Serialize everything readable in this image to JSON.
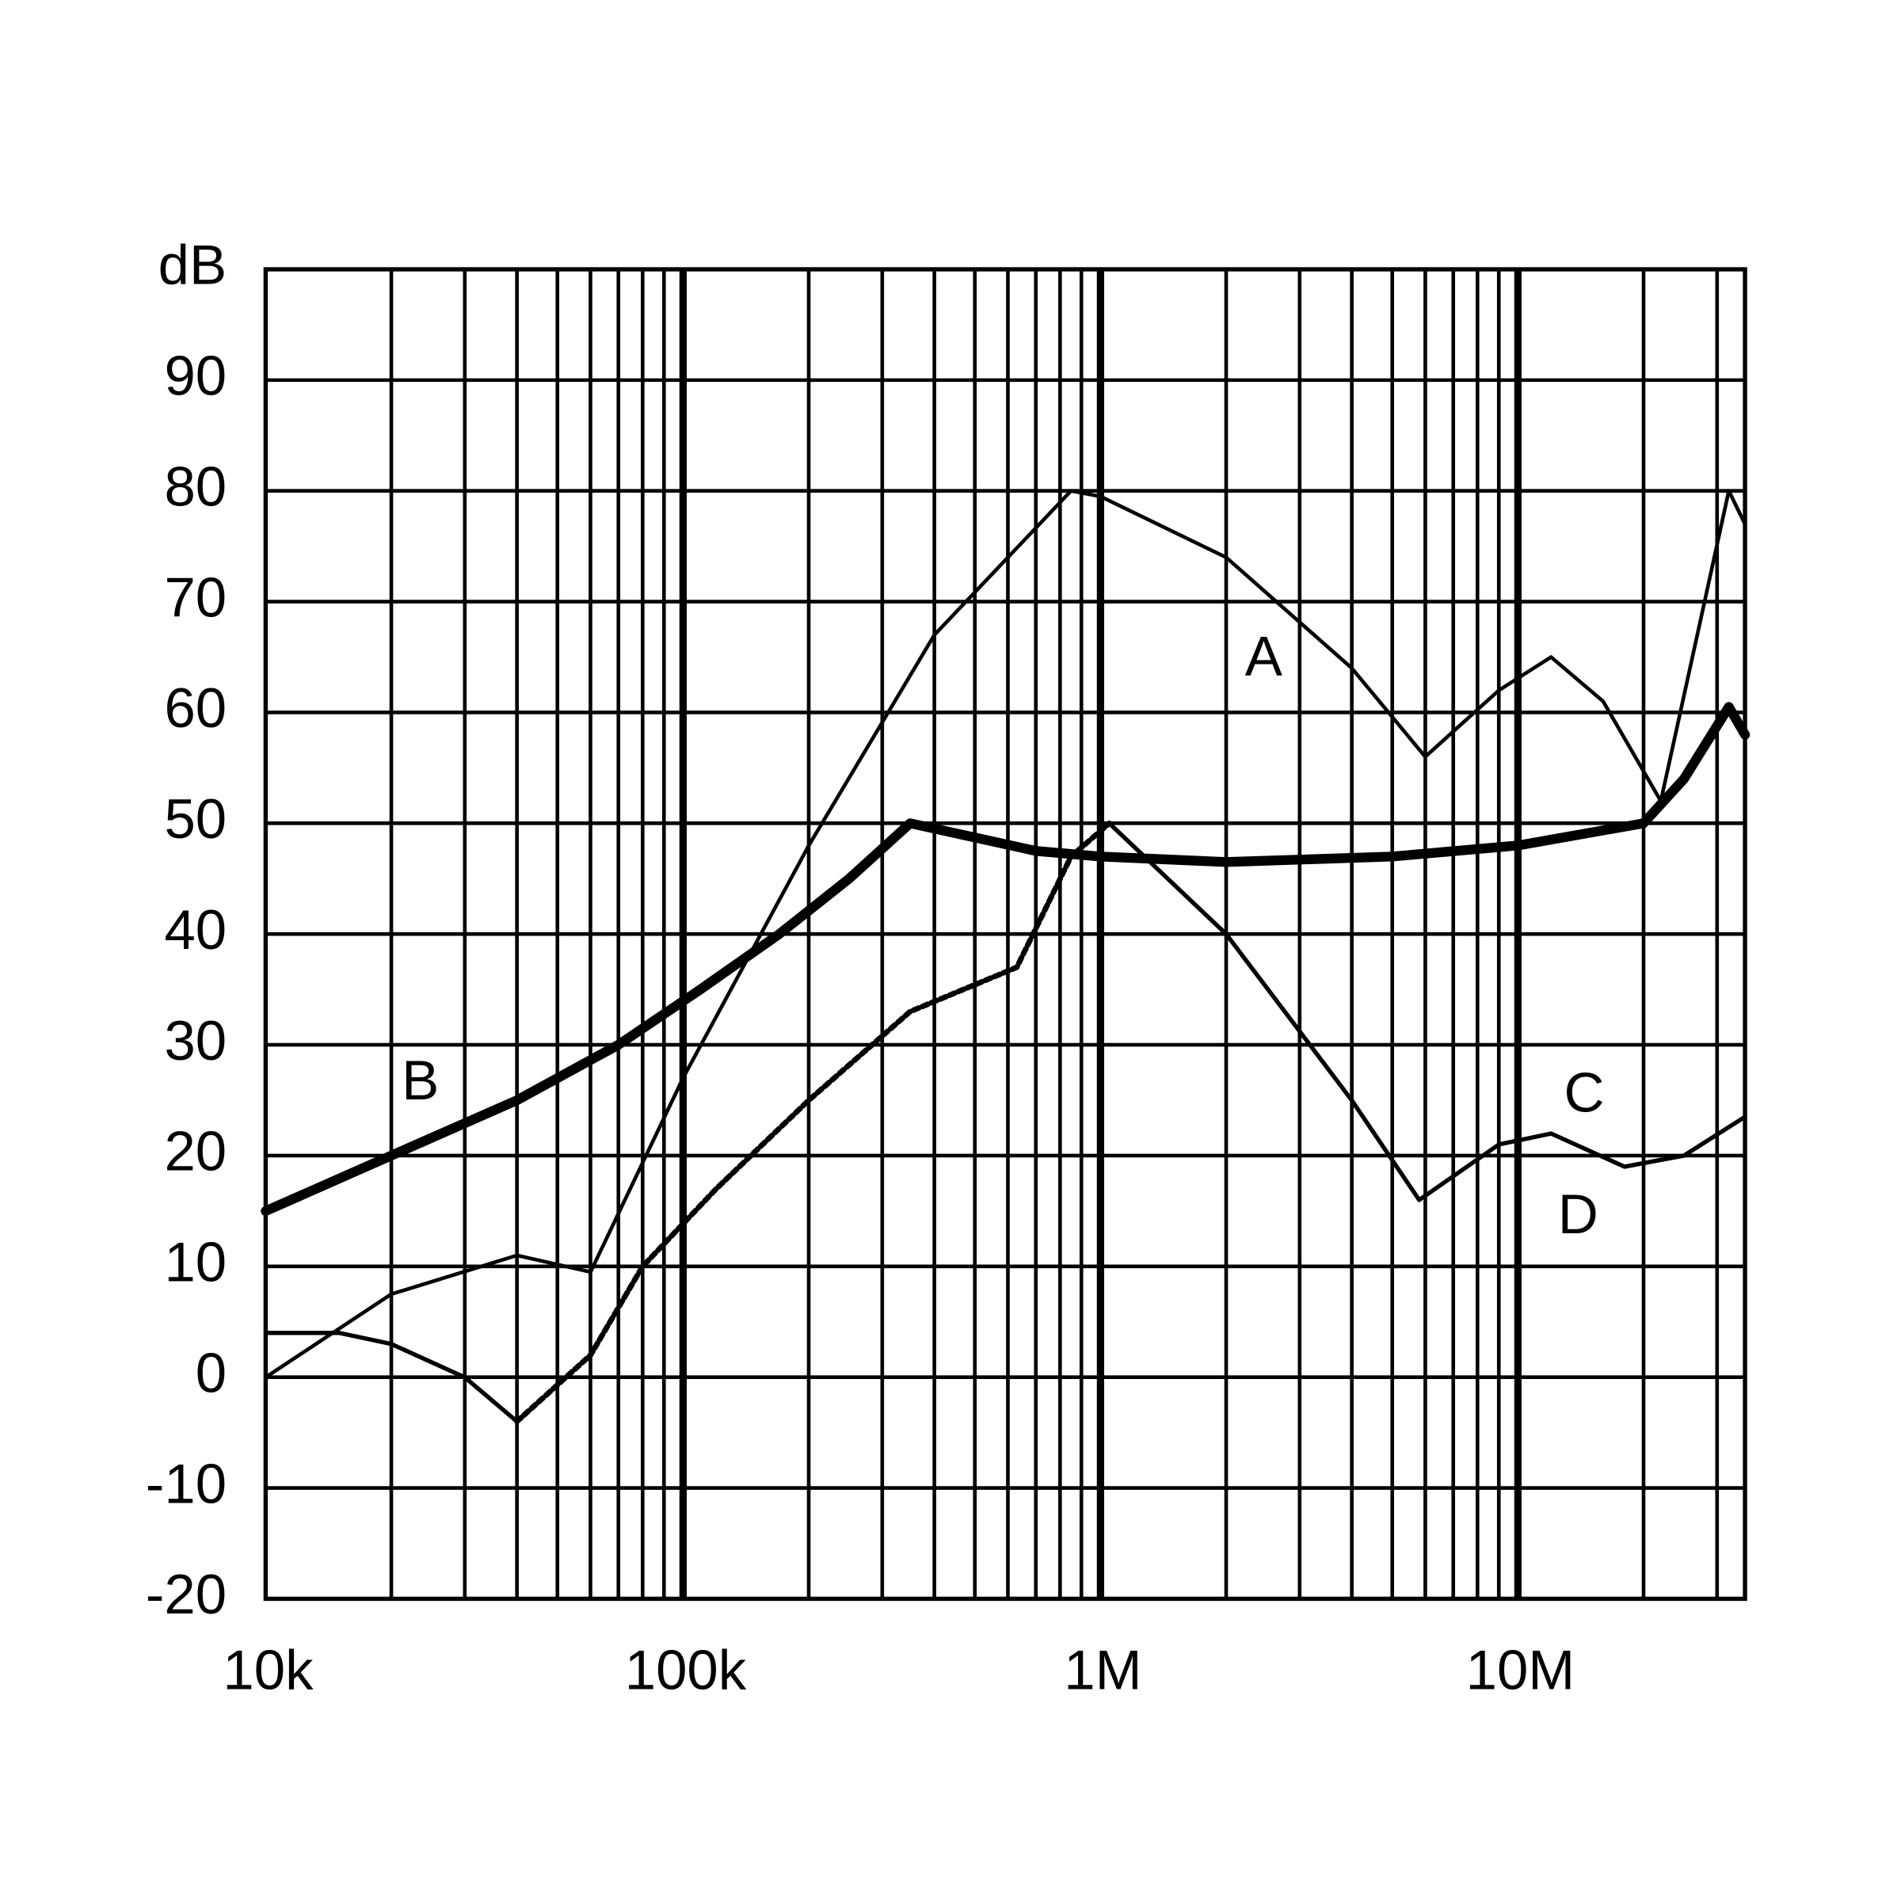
{
  "chart_data": {
    "type": "line",
    "xscale": "log",
    "xlim": [
      10000,
      35000000
    ],
    "xticks": [
      {
        "value": 10000,
        "label": "10k"
      },
      {
        "value": 100000,
        "label": "100k"
      },
      {
        "value": 1000000,
        "label": "1M"
      },
      {
        "value": 10000000,
        "label": "10M"
      }
    ],
    "x_minor_ticks": [
      20000,
      30000,
      40000,
      50000,
      60000,
      70000,
      80000,
      90000,
      200000,
      300000,
      400000,
      500000,
      600000,
      700000,
      800000,
      900000,
      2000000,
      3000000,
      4000000,
      5000000,
      6000000,
      7000000,
      8000000,
      9000000,
      20000000,
      30000000
    ],
    "ylim": [
      -20,
      100
    ],
    "yticks": [
      -20,
      -10,
      0,
      10,
      20,
      30,
      40,
      50,
      60,
      70,
      80,
      90,
      {
        "value": 100,
        "label": "dB"
      }
    ],
    "grid": true,
    "series": [
      {
        "name": "A",
        "color": "#000000",
        "line_width": 3,
        "x": [
          10000,
          20000,
          40000,
          60000,
          100000,
          200000,
          400000,
          850000,
          1000000,
          2000000,
          4000000,
          6000000,
          9000000,
          12000000,
          16000000,
          22000000,
          28000000,
          32000000,
          35000000
        ],
        "values": [
          0,
          7.5,
          11,
          9.5,
          27,
          48,
          67,
          80,
          79.5,
          74,
          64,
          56,
          62,
          65,
          61,
          52,
          70,
          80,
          77
        ]
      },
      {
        "name": "B",
        "color": "#000000",
        "line_width": 8,
        "x": [
          10000,
          20000,
          40000,
          70000,
          110000,
          170000,
          250000,
          350000,
          700000,
          1000000,
          2000000,
          5000000,
          10000000,
          20000000,
          25000000,
          32000000,
          35000000
        ],
        "values": [
          15,
          20,
          25,
          30,
          35,
          40,
          45,
          50,
          47.5,
          47,
          46.5,
          47,
          48,
          50,
          54,
          60.5,
          58
        ]
      },
      {
        "name": "C",
        "color": "#000000",
        "line_width": 3.5,
        "x": [
          10000,
          15000,
          20000,
          30000,
          40000,
          200000,
          1050000,
          2000000,
          4000000,
          5800000,
          9000000,
          12000000,
          18000000,
          25000000,
          35000000
        ],
        "values": [
          4,
          4,
          3,
          0,
          -4,
          null,
          50,
          40,
          25,
          16,
          21,
          22,
          19,
          20,
          23.5
        ]
      },
      {
        "name": "D",
        "color": "#000000",
        "line_width": 4.5,
        "dashed": true,
        "x": [
          40000,
          60000,
          80000,
          120000,
          200000,
          350000,
          630000,
          850000,
          1050000
        ],
        "values": [
          -4,
          2,
          10,
          17,
          25,
          33,
          37,
          47,
          50
        ]
      }
    ]
  }
}
